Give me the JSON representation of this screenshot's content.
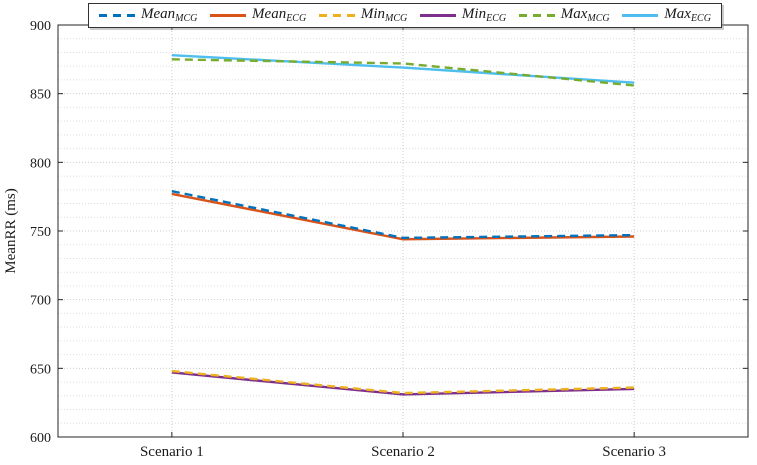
{
  "figure": {
    "background": "#ffffff",
    "axis_color": "#262626",
    "major_grid_color": "#cccccc",
    "minor_grid_color": "#dddddd"
  },
  "chart_data": {
    "type": "line",
    "title": "",
    "xlabel": "",
    "ylabel": "MeanRR (ms)",
    "categories": [
      "Scenario 1",
      "Scenario 2",
      "Scenario 3"
    ],
    "ylim": [
      600,
      900
    ],
    "yticks": [
      600,
      650,
      700,
      750,
      800,
      850,
      900
    ],
    "minor_grid_step": 10,
    "grid": "on",
    "legend_position": "top",
    "series": [
      {
        "name": "Mean_MCG",
        "label_main": "Mean",
        "label_sub": "MCG",
        "color": "#0072BD",
        "style": "dashed",
        "values": [
          779,
          745,
          747
        ]
      },
      {
        "name": "Mean_ECG",
        "label_main": "Mean",
        "label_sub": "ECG",
        "color": "#D95319",
        "style": "solid",
        "values": [
          777,
          744,
          746
        ]
      },
      {
        "name": "Min_MCG",
        "label_main": "Min",
        "label_sub": "MCG",
        "color": "#EDB120",
        "style": "dashed",
        "values": [
          648,
          632,
          636
        ]
      },
      {
        "name": "Min_ECG",
        "label_main": "Min",
        "label_sub": "ECG",
        "color": "#7E2F8E",
        "style": "solid",
        "values": [
          647,
          631,
          635
        ]
      },
      {
        "name": "Max_MCG",
        "label_main": "Max",
        "label_sub": "MCG",
        "color": "#77AC30",
        "style": "dashed",
        "values": [
          875,
          872,
          856
        ]
      },
      {
        "name": "Max_ECG",
        "label_main": "Max",
        "label_sub": "ECG",
        "color": "#4DBEEE",
        "style": "solid",
        "values": [
          878,
          869,
          858
        ]
      }
    ]
  }
}
